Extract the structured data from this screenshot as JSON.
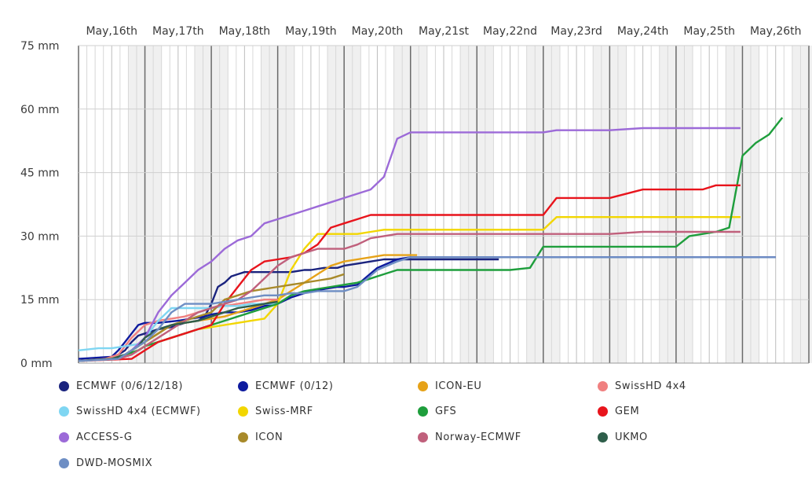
{
  "chart_data": {
    "type": "line",
    "title": "",
    "xlabel": "",
    "ylabel": "",
    "x_unit": "days since May 15 00:00",
    "xlim": [
      0,
      10.6
    ],
    "ylim": [
      0,
      75
    ],
    "y_ticks": [
      {
        "value": 0,
        "label": "0 mm"
      },
      {
        "value": 15,
        "label": "15 mm"
      },
      {
        "value": 30,
        "label": "30 mm"
      },
      {
        "value": 45,
        "label": "45 mm"
      },
      {
        "value": 60,
        "label": "60 mm"
      },
      {
        "value": 75,
        "label": "75 mm"
      }
    ],
    "x_ticks": [
      {
        "value": 1,
        "label": "May,16th"
      },
      {
        "value": 2,
        "label": "May,17th"
      },
      {
        "value": 3,
        "label": "May,18th"
      },
      {
        "value": 4,
        "label": "May,19th"
      },
      {
        "value": 5,
        "label": "May,20th"
      },
      {
        "value": 6,
        "label": "May,21st"
      },
      {
        "value": 7,
        "label": "May,22nd"
      },
      {
        "value": 8,
        "label": "May,23rd"
      },
      {
        "value": 9,
        "label": "May,24th"
      },
      {
        "value": 10,
        "label": "May,25th"
      },
      {
        "value": 11,
        "label": "May,26th"
      }
    ],
    "legend_position": "bottom",
    "series": [
      {
        "name": "ECMWF (0/6/12/18)",
        "color": "#1a237e",
        "x": [
          0,
          0.4,
          0.5,
          0.6,
          0.7,
          0.8,
          0.9,
          1.0,
          1.2,
          1.4,
          1.5,
          1.6,
          1.8,
          1.9,
          2.0,
          2.1,
          2.2,
          2.3,
          2.4,
          2.5,
          2.6,
          3.0,
          3.2,
          3.4,
          3.5,
          3.7,
          3.9,
          4.0,
          4.2,
          4.4,
          4.6,
          4.8,
          5.0,
          5.2,
          5.5,
          6.0,
          6.33
        ],
        "y": [
          0.5,
          1,
          1.5,
          2,
          3,
          5,
          6.5,
          7,
          8,
          8.5,
          9,
          9.5,
          10,
          11,
          14,
          18,
          19,
          20.5,
          21,
          21.5,
          21.5,
          21.5,
          21.5,
          22,
          22,
          22.5,
          22.5,
          23,
          23.5,
          24,
          24.5,
          24.5,
          24.5,
          24.5,
          24.5,
          24.5,
          24.5
        ]
      },
      {
        "name": "ECMWF (0/12)",
        "color": "#0d1a9e",
        "x": [
          0,
          0.5,
          0.6,
          0.7,
          0.8,
          0.9,
          1.0,
          1.2,
          1.5,
          1.7,
          1.9,
          2.0,
          2.2,
          2.4,
          2.6,
          2.8,
          3.0,
          3.2,
          3.5,
          3.7,
          3.9,
          4.0,
          4.2,
          4.5,
          4.8,
          5.0,
          6.0,
          7.0,
          8.0,
          9.0,
          10.0,
          10.5
        ],
        "y": [
          1,
          1.5,
          3,
          5,
          7,
          9,
          9.5,
          9.5,
          10,
          10.5,
          11,
          11.5,
          12,
          12,
          12.5,
          13.5,
          14,
          15.5,
          17,
          17.5,
          18,
          18,
          18.5,
          22.5,
          24.5,
          25,
          25,
          25,
          25,
          25,
          25,
          25
        ]
      },
      {
        "name": "ICON-EU",
        "color": "#e6a218",
        "x": [
          0,
          0.6,
          0.8,
          1.0,
          1.2,
          1.4,
          1.6,
          1.8,
          2.0,
          2.2,
          2.4,
          2.6,
          2.8,
          3.0,
          3.2,
          3.4,
          3.6,
          3.8,
          4.0,
          4.2,
          4.4,
          4.6,
          4.8,
          5.1
        ],
        "y": [
          0.5,
          1,
          3,
          5,
          7,
          9,
          9.5,
          10,
          10.5,
          11,
          12,
          13,
          14,
          15,
          17,
          19,
          21,
          23,
          24,
          24.5,
          25,
          25.5,
          25.5,
          25.5
        ]
      },
      {
        "name": "SwissHD 4x4",
        "color": "#f08080",
        "x": [
          0,
          0.4,
          0.6,
          0.8,
          1.0,
          1.2,
          1.4,
          1.6,
          1.8,
          2.0,
          2.2,
          2.4,
          2.6,
          2.8,
          3.0
        ],
        "y": [
          0.5,
          1,
          2,
          6,
          9,
          10,
          10.5,
          11,
          12,
          13,
          13.5,
          14,
          14.5,
          15,
          15
        ]
      },
      {
        "name": "SwissHD 4x4 (ECMWF)",
        "color": "#7fd6f2",
        "x": [
          0,
          0.3,
          0.5,
          0.7,
          0.9,
          1.0,
          1.2,
          1.4,
          1.6,
          1.8,
          2.0,
          2.2,
          2.4,
          2.6,
          2.8,
          3.0
        ],
        "y": [
          3,
          3.5,
          3.5,
          4,
          4.5,
          6,
          10,
          13,
          13,
          13,
          13,
          13.5,
          13.5,
          14,
          14,
          14
        ]
      },
      {
        "name": "Swiss-MRF",
        "color": "#f2d600",
        "x": [
          0,
          0.5,
          0.7,
          0.9,
          1.0,
          1.2,
          1.4,
          1.6,
          1.8,
          2.0,
          2.2,
          2.4,
          2.6,
          2.8,
          3.0,
          3.2,
          3.4,
          3.6,
          3.8,
          4.0,
          4.2,
          4.4,
          4.6,
          4.8,
          5.0,
          5.5,
          6.0,
          6.5,
          7.0,
          7.2,
          7.5,
          8.0,
          8.5,
          9.0,
          9.5,
          9.97
        ],
        "y": [
          0.5,
          1,
          2,
          3,
          4,
          5,
          6,
          7,
          8,
          8.5,
          9,
          9.5,
          10,
          10.5,
          14,
          22,
          27,
          30.5,
          30.5,
          30.5,
          30.5,
          31,
          31.5,
          31.5,
          31.5,
          31.5,
          31.5,
          31.5,
          31.5,
          34.5,
          34.5,
          34.5,
          34.5,
          34.5,
          34.5,
          34.5
        ]
      },
      {
        "name": "GFS",
        "color": "#1e9e3c",
        "x": [
          0,
          0.5,
          0.7,
          0.9,
          1.0,
          1.2,
          1.4,
          1.6,
          1.8,
          2.0,
          2.2,
          2.4,
          2.6,
          2.8,
          3.0,
          3.2,
          3.4,
          3.6,
          3.8,
          4.0,
          4.2,
          4.4,
          4.6,
          4.8,
          5.0,
          5.5,
          6.0,
          6.5,
          6.8,
          7.0,
          7.2,
          7.5,
          8.0,
          8.5,
          9.0,
          9.2,
          9.4,
          9.6,
          9.8,
          10.0,
          10.2,
          10.4,
          10.6
        ],
        "y": [
          0.5,
          1,
          2,
          3,
          4,
          5,
          6,
          7,
          8,
          9,
          10,
          11,
          12,
          13,
          14,
          16,
          17,
          17.5,
          18,
          18.5,
          19,
          20,
          21,
          22,
          22,
          22,
          22,
          22,
          22.5,
          27.5,
          27.5,
          27.5,
          27.5,
          27.5,
          27.5,
          30,
          30.5,
          31,
          32,
          49,
          52,
          54,
          58
        ]
      },
      {
        "name": "GEM",
        "color": "#e8141c",
        "x": [
          0,
          0.8,
          1.0,
          1.2,
          1.4,
          1.6,
          1.8,
          2.0,
          2.2,
          2.4,
          2.6,
          2.8,
          3.0,
          3.2,
          3.4,
          3.6,
          3.8,
          4.0,
          4.2,
          4.4,
          4.6,
          4.8,
          5.0,
          5.5,
          6.0,
          6.5,
          7.0,
          7.2,
          7.5,
          8.0,
          8.5,
          9.0,
          9.2,
          9.4,
          9.6,
          9.97
        ],
        "y": [
          0.5,
          1,
          3,
          5,
          6,
          7,
          8,
          9,
          14,
          18,
          22,
          24,
          24.5,
          25,
          26,
          28,
          32,
          33,
          34,
          35,
          35,
          35,
          35,
          35,
          35,
          35,
          35,
          39,
          39,
          39,
          41,
          41,
          41,
          41,
          42,
          42
        ]
      },
      {
        "name": "ACCESS-G",
        "color": "#9c6ad8",
        "x": [
          0,
          0.6,
          0.8,
          1.0,
          1.2,
          1.4,
          1.6,
          1.8,
          2.0,
          2.2,
          2.4,
          2.6,
          2.8,
          3.0,
          3.2,
          3.4,
          3.6,
          3.8,
          4.0,
          4.2,
          4.4,
          4.6,
          4.8,
          5.0,
          5.5,
          6.0,
          6.5,
          7.0,
          7.2,
          7.5,
          8.0,
          8.5,
          9.0,
          9.5,
          9.97
        ],
        "y": [
          0.5,
          1,
          3,
          6,
          12,
          16,
          19,
          22,
          24,
          27,
          29,
          30,
          33,
          34,
          35,
          36,
          37,
          38,
          39,
          40,
          41,
          44,
          53,
          54.5,
          54.5,
          54.5,
          54.5,
          54.5,
          55,
          55,
          55,
          55.5,
          55.5,
          55.5,
          55.5
        ]
      },
      {
        "name": "ICON",
        "color": "#a88a2a",
        "x": [
          0,
          0.6,
          0.8,
          1.0,
          1.2,
          1.4,
          1.6,
          1.8,
          2.0,
          2.2,
          2.4,
          2.6,
          2.8,
          3.0,
          3.2,
          3.4,
          3.6,
          3.8,
          4.0
        ],
        "y": [
          0.5,
          1,
          3,
          5,
          7,
          9,
          10,
          11,
          12,
          15,
          16,
          17,
          17.5,
          18,
          18.5,
          19,
          19.5,
          20,
          21
        ]
      },
      {
        "name": "Norway-ECMWF",
        "color": "#c0607c",
        "x": [
          0,
          0.6,
          0.8,
          1.0,
          1.2,
          1.4,
          1.6,
          1.8,
          2.0,
          2.2,
          2.4,
          2.6,
          2.8,
          3.0,
          3.2,
          3.4,
          3.6,
          3.8,
          4.0,
          4.2,
          4.4,
          4.6,
          4.8,
          5.0,
          6.0,
          7.0,
          8.0,
          8.5,
          9.0,
          9.5,
          9.97
        ],
        "y": [
          0.5,
          1,
          2,
          4,
          6,
          8,
          10,
          12,
          13,
          14,
          15,
          17,
          20,
          23,
          25,
          26,
          27,
          27,
          27,
          28,
          29.5,
          30,
          30.5,
          30.5,
          30.5,
          30.5,
          30.5,
          31,
          31,
          31,
          31
        ]
      },
      {
        "name": "UKMO",
        "color": "#2e5e4a",
        "x": [
          0,
          0.5,
          0.7,
          0.9,
          1.0,
          1.2,
          1.4,
          1.6,
          1.8,
          2.0,
          2.2,
          2.4,
          2.6,
          2.8,
          3.0
        ],
        "y": [
          0.5,
          1,
          2,
          4,
          6,
          8,
          9,
          9.5,
          10,
          11,
          12,
          13,
          13.5,
          14,
          14.5
        ]
      },
      {
        "name": "DWD-MOSMIX",
        "color": "#6e8ec4",
        "x": [
          0,
          0.6,
          0.8,
          1.0,
          1.2,
          1.4,
          1.6,
          1.8,
          2.0,
          2.2,
          2.4,
          2.6,
          2.8,
          3.0,
          3.2,
          3.4,
          3.6,
          3.8,
          4.0,
          4.2,
          4.5,
          4.8,
          5.0,
          6.0,
          7.0,
          8.0,
          9.0,
          10.0,
          10.5
        ],
        "y": [
          0.5,
          1,
          3,
          5,
          8,
          12,
          14,
          14,
          14,
          14.5,
          15,
          15.5,
          16,
          16,
          16.5,
          16.5,
          17,
          17,
          17,
          18,
          22,
          24,
          25,
          25,
          25,
          25,
          25,
          25,
          25
        ]
      }
    ]
  }
}
